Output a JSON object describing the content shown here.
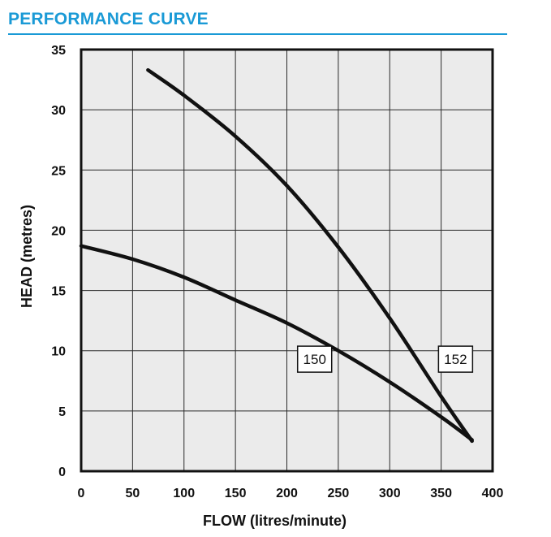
{
  "header": {
    "title": "PERFORMANCE CURVE",
    "accent_color": "#1a9ad6"
  },
  "chart_data": {
    "type": "line",
    "title": "PERFORMANCE CURVE",
    "xlabel": "FLOW (litres/minute)",
    "ylabel": "HEAD (metres)",
    "xlim": [
      0,
      400
    ],
    "ylim": [
      0,
      35
    ],
    "xticks": [
      0,
      50,
      100,
      150,
      200,
      250,
      300,
      350,
      400
    ],
    "yticks": [
      0,
      5,
      10,
      15,
      20,
      25,
      30,
      35
    ],
    "grid": true,
    "plot_background": "#ebebeb",
    "series": [
      {
        "name": "150",
        "points": [
          [
            0,
            18.7
          ],
          [
            50,
            17.6
          ],
          [
            100,
            16.1
          ],
          [
            150,
            14.2
          ],
          [
            200,
            12.3
          ],
          [
            250,
            10.0
          ],
          [
            300,
            7.4
          ],
          [
            350,
            4.5
          ],
          [
            380,
            2.6
          ]
        ],
        "label_at": [
          227,
          9.3
        ]
      },
      {
        "name": "152",
        "points": [
          [
            65,
            33.3
          ],
          [
            100,
            31.2
          ],
          [
            150,
            27.8
          ],
          [
            200,
            23.7
          ],
          [
            250,
            18.6
          ],
          [
            300,
            12.7
          ],
          [
            350,
            6.2
          ],
          [
            380,
            2.5
          ]
        ],
        "label_at": [
          364,
          9.3
        ]
      }
    ]
  }
}
